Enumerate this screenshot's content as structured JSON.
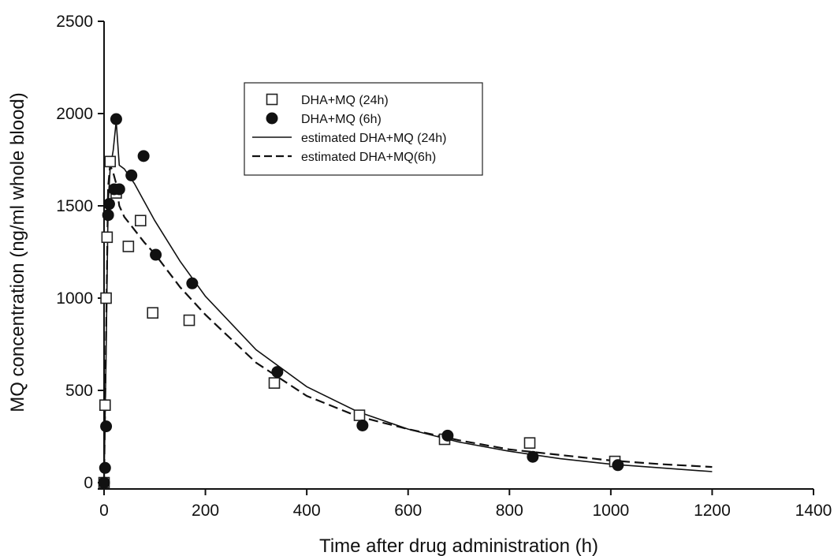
{
  "chart_data": {
    "type": "scatter",
    "title": "",
    "xlabel": "Time after drug administration (h)",
    "ylabel": "MQ concentration (ng/ml whole blood)",
    "xlim": [
      0,
      1400
    ],
    "ylim": [
      0,
      2500
    ],
    "xticks": [
      0,
      200,
      400,
      600,
      800,
      1000,
      1200,
      1400
    ],
    "yticks": [
      0,
      500,
      1000,
      1500,
      2000,
      2500
    ],
    "grid": false,
    "legend_position": "top-center",
    "series": [
      {
        "name": "DHA+MQ (24h)",
        "kind": "points",
        "marker": "open-square",
        "x": [
          0,
          2,
          4,
          6,
          12,
          24,
          48,
          72,
          96,
          168,
          336,
          504,
          672,
          840,
          1008
        ],
        "y": [
          0,
          420,
          1000,
          1330,
          1740,
          1570,
          1280,
          1420,
          920,
          880,
          540,
          365,
          235,
          215,
          115
        ]
      },
      {
        "name": "DHA+MQ (6h)",
        "kind": "points",
        "marker": "filled-circle",
        "x": [
          0,
          2,
          4,
          8,
          10,
          20,
          24,
          30,
          54,
          78,
          102,
          174,
          342,
          510,
          678,
          846,
          1014
        ],
        "y": [
          0,
          80,
          305,
          1450,
          1510,
          1590,
          1970,
          1590,
          1665,
          1770,
          1235,
          1080,
          600,
          310,
          255,
          140,
          95
        ]
      },
      {
        "name": "estimated DHA+MQ (24h)",
        "kind": "line",
        "dash": "solid",
        "x": [
          0,
          4,
          8,
          12,
          18,
          24,
          30,
          40,
          60,
          80,
          100,
          150,
          200,
          300,
          400,
          500,
          600,
          700,
          800,
          900,
          1000,
          1100,
          1200
        ],
        "y": [
          0,
          700,
          1500,
          1700,
          1800,
          1960,
          1720,
          1700,
          1620,
          1520,
          1420,
          1200,
          1010,
          720,
          520,
          385,
          290,
          220,
          170,
          130,
          100,
          80,
          60
        ]
      },
      {
        "name": "estimated DHA+MQ(6h)",
        "kind": "line",
        "dash": "dashed",
        "x": [
          0,
          4,
          8,
          12,
          18,
          24,
          30,
          40,
          60,
          80,
          100,
          150,
          200,
          300,
          400,
          500,
          600,
          700,
          800,
          900,
          1000,
          1100,
          1200
        ],
        "y": [
          0,
          800,
          1600,
          1720,
          1680,
          1620,
          1500,
          1440,
          1370,
          1300,
          1240,
          1060,
          910,
          650,
          470,
          360,
          290,
          230,
          180,
          150,
          120,
          100,
          85
        ]
      }
    ]
  }
}
